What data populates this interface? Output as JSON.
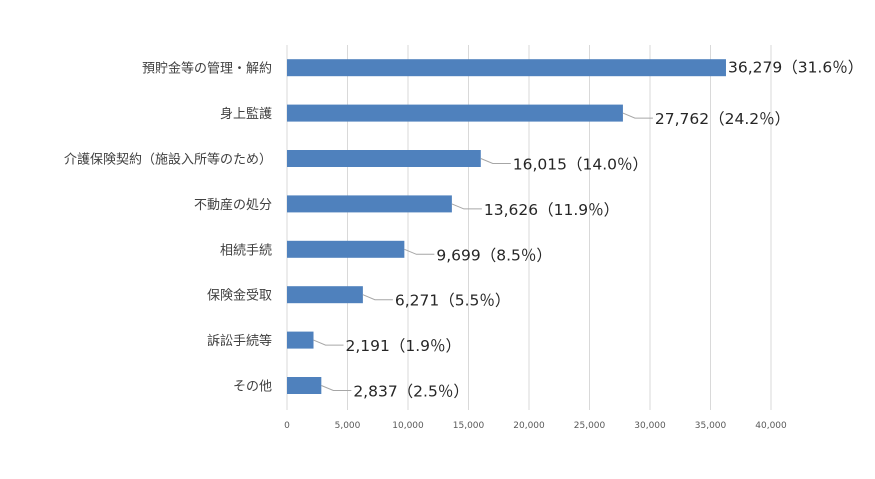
{
  "chart_data": {
    "type": "bar",
    "orientation": "horizontal",
    "title": "",
    "xlabel": "",
    "ylabel": "",
    "categories": [
      "預貯金等の管理・解約",
      "身上監護",
      "介護保険契約（施設入所等のため）",
      "不動産の処分",
      "相続手続",
      "保険金受取",
      "訴訟手続等",
      "その他"
    ],
    "values": [
      36279,
      27762,
      16015,
      13626,
      9699,
      6271,
      2191,
      2837
    ],
    "data_labels": [
      "36,279（31.6％）",
      "27,762（24.2％）",
      "16,015（14.0％）",
      "13,626（11.9％）",
      "9,699（8.5％）",
      "6,271（5.5％）",
      "2,191（1.9％）",
      "2,837（2.5％）"
    ],
    "xlim": [
      0,
      40000
    ],
    "x_ticks": [
      0,
      5000,
      10000,
      15000,
      20000,
      25000,
      30000,
      35000,
      40000
    ],
    "x_tick_labels": [
      "0",
      "5,000",
      "10,000",
      "15,000",
      "20,000",
      "25,000",
      "30,000",
      "35,000",
      "40,000"
    ],
    "grid": true,
    "legend": "none",
    "bar_color": "#4f81bd",
    "grid_color": "#d9d9d9"
  }
}
